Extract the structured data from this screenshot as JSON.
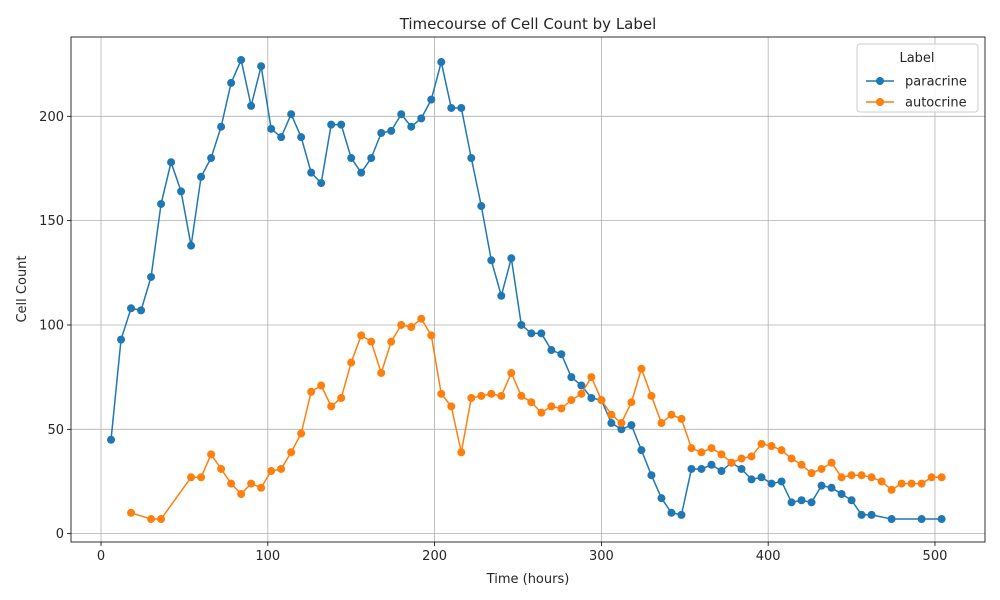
{
  "chart_data": {
    "type": "line",
    "title": "Timecourse of Cell Count by Label",
    "xlabel": "Time (hours)",
    "ylabel": "Cell Count",
    "xlim": [
      -18,
      530
    ],
    "ylim": [
      -4,
      238
    ],
    "xticks": [
      0,
      100,
      200,
      300,
      400,
      500
    ],
    "yticks": [
      0,
      50,
      100,
      150,
      200
    ],
    "grid": true,
    "legend": {
      "title": "Label",
      "position": "top-right"
    },
    "series": [
      {
        "name": "paracrine",
        "color": "#1f77b4",
        "x": [
          6,
          12,
          18,
          24,
          30,
          36,
          42,
          48,
          54,
          60,
          66,
          72,
          78,
          84,
          90,
          96,
          102,
          108,
          114,
          120,
          126,
          132,
          138,
          144,
          150,
          156,
          162,
          168,
          174,
          180,
          186,
          192,
          198,
          204,
          210,
          216,
          222,
          228,
          234,
          240,
          246,
          252,
          258,
          264,
          270,
          276,
          282,
          288,
          294,
          300,
          306,
          312,
          318,
          324,
          330,
          336,
          342,
          348,
          354,
          360,
          366,
          372,
          378,
          384,
          390,
          396,
          402,
          408,
          414,
          420,
          426,
          432,
          438,
          444,
          450,
          456,
          462,
          474,
          492,
          504
        ],
        "y": [
          45,
          93,
          108,
          107,
          123,
          158,
          178,
          164,
          138,
          171,
          180,
          195,
          216,
          227,
          205,
          224,
          194,
          190,
          201,
          190,
          173,
          168,
          196,
          196,
          180,
          173,
          180,
          192,
          193,
          201,
          195,
          199,
          208,
          226,
          204,
          204,
          180,
          157,
          131,
          114,
          132,
          100,
          96,
          96,
          88,
          86,
          75,
          71,
          65,
          64,
          53,
          50,
          52,
          40,
          28,
          17,
          10,
          9,
          31,
          31,
          33,
          30,
          34,
          31,
          26,
          27,
          24,
          25,
          15,
          16,
          15,
          23,
          22,
          19,
          16,
          9,
          9,
          7,
          7,
          7
        ]
      },
      {
        "name": "autocrine",
        "color": "#ff7f0e",
        "x": [
          18,
          30,
          36,
          54,
          60,
          66,
          72,
          78,
          84,
          90,
          96,
          102,
          108,
          114,
          120,
          126,
          132,
          138,
          144,
          150,
          156,
          162,
          168,
          174,
          180,
          186,
          192,
          198,
          204,
          210,
          216,
          222,
          228,
          234,
          240,
          246,
          252,
          258,
          264,
          270,
          276,
          282,
          288,
          294,
          300,
          306,
          312,
          318,
          324,
          330,
          336,
          342,
          348,
          354,
          360,
          366,
          372,
          378,
          384,
          390,
          396,
          402,
          408,
          414,
          420,
          426,
          432,
          438,
          444,
          450,
          456,
          462,
          468,
          474,
          480,
          486,
          492,
          498,
          504
        ],
        "y": [
          10,
          7,
          7,
          27,
          27,
          38,
          31,
          24,
          19,
          24,
          22,
          30,
          31,
          39,
          48,
          68,
          71,
          61,
          65,
          82,
          95,
          92,
          77,
          92,
          100,
          99,
          103,
          95,
          67,
          61,
          39,
          65,
          66,
          67,
          66,
          77,
          66,
          63,
          58,
          61,
          60,
          64,
          67,
          75,
          64,
          57,
          53,
          63,
          79,
          66,
          53,
          57,
          55,
          41,
          39,
          41,
          38,
          34,
          36,
          37,
          43,
          42,
          40,
          36,
          33,
          29,
          31,
          34,
          27,
          28,
          28,
          27,
          25,
          21,
          24,
          24,
          24,
          27,
          27
        ]
      }
    ]
  }
}
